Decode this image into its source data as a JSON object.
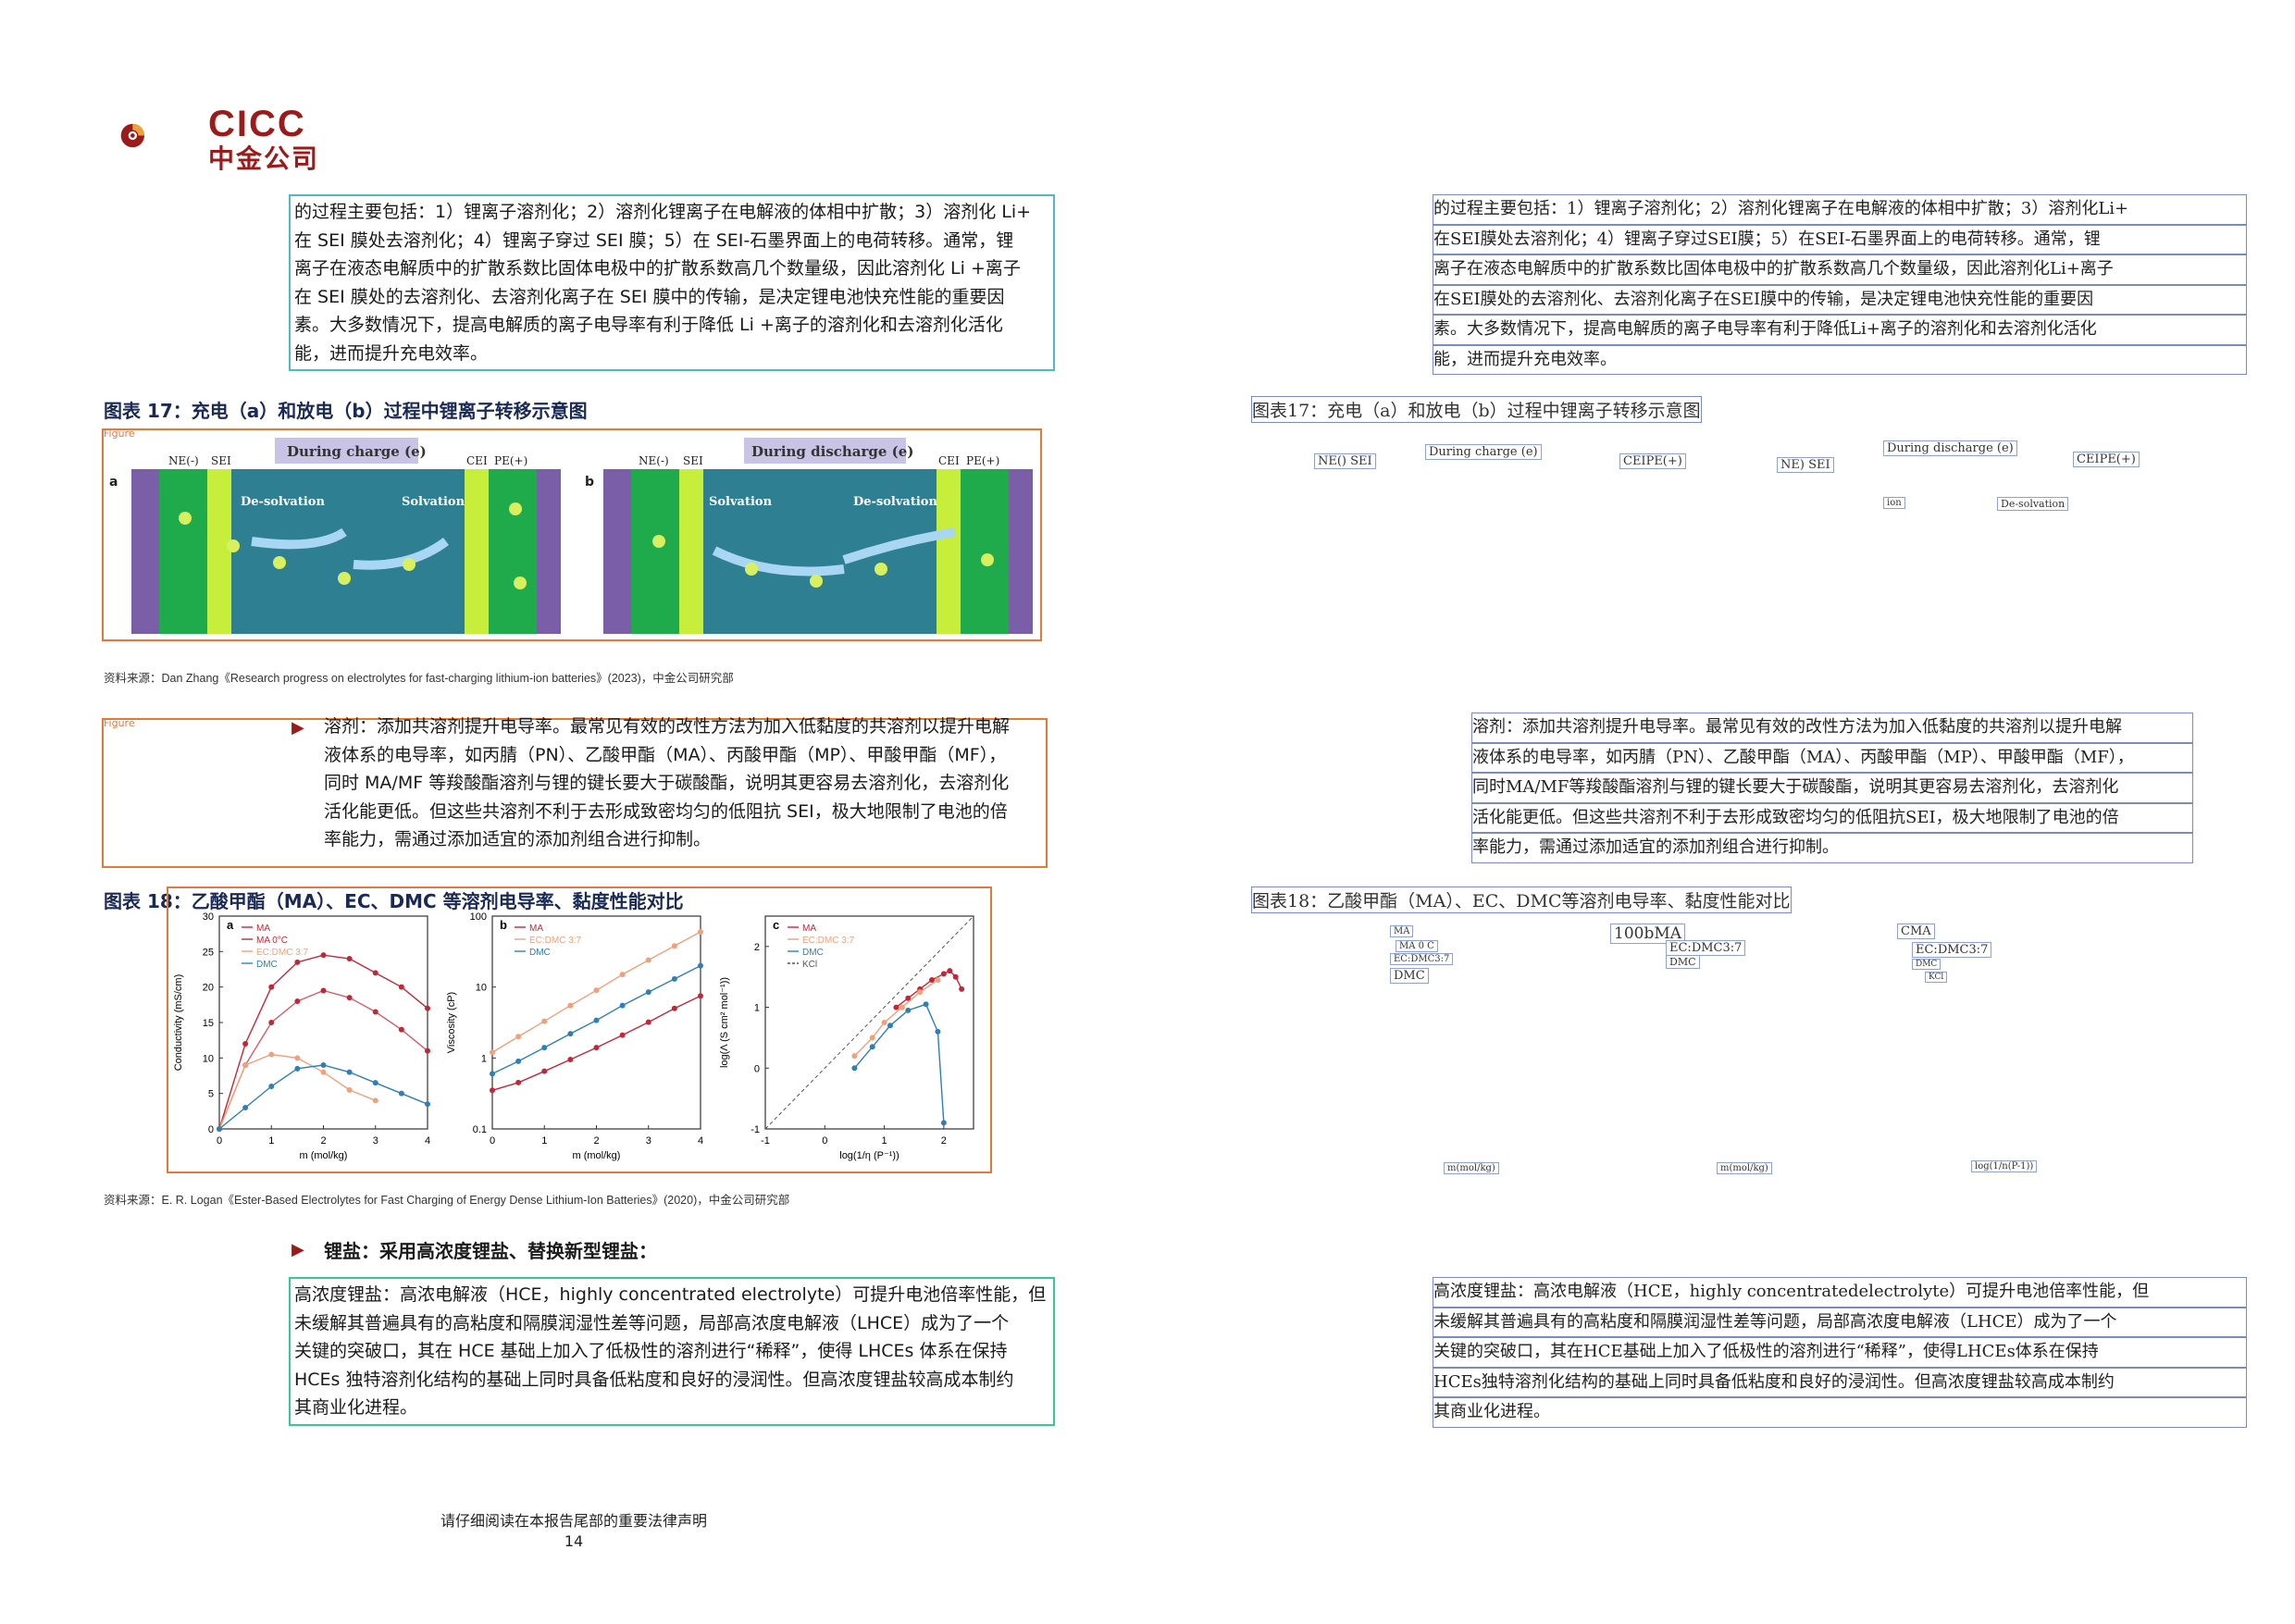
{
  "logo": {
    "en": "CICC",
    "cn": "中金公司"
  },
  "para1": {
    "lines": [
      "的过程主要包括：1）锂离子溶剂化；2）溶剂化锂离子在电解液的体相中扩散；3）溶剂化 Li+",
      "在 SEI 膜处去溶剂化；4）锂离子穿过 SEI 膜；5）在 SEI-石墨界面上的电荷转移。通常，锂",
      "离子在液态电解质中的扩散系数比固体电极中的扩散系数高几个数量级，因此溶剂化 Li +离子",
      "在 SEI 膜处的去溶剂化、去溶剂化离子在 SEI 膜中的传输，是决定锂电池快充性能的重要因",
      "素。大多数情况下，提高电解质的离子电导率有利于降低 Li +离子的溶剂化和去溶剂化活化",
      "能，进而提升充电效率。"
    ]
  },
  "fig17": {
    "title": "图表 17：充电（a）和放电（b）过程中锂离子转移示意图",
    "tag": "Figure",
    "panel_a": {
      "letter": "a",
      "header": "During charge (e)",
      "ne": "NE(-)",
      "sei": "SEI",
      "cei": "CEI",
      "pe": "PE(+)",
      "left_label": "De-solvation",
      "right_label": "Solvation"
    },
    "panel_b": {
      "letter": "b",
      "header": "During discharge (e)",
      "ne": "NE(-)",
      "sei": "SEI",
      "cei": "CEI",
      "pe": "PE(+)",
      "left_label": "Solvation",
      "right_label": "De-solvation"
    },
    "source": "资料来源：Dan Zhang《Research progress on electrolytes for fast-charging lithium-ion batteries》(2023)，中金公司研究部"
  },
  "para2": {
    "lines": [
      "溶剂：添加共溶剂提升电导率。最常见有效的改性方法为加入低黏度的共溶剂以提升电解",
      "液体系的电导率，如丙腈（PN）、乙酸甲酯（MA）、丙酸甲酯（MP）、甲酸甲酯（MF），",
      "同时 MA/MF 等羧酸酯溶剂与锂的键长要大于碳酸酯，说明其更容易去溶剂化，去溶剂化",
      "活化能更低。但这些共溶剂不利于去形成致密均匀的低阻抗 SEI，极大地限制了电池的倍",
      "率能力，需通过添加适宜的添加剂组合进行抑制。"
    ]
  },
  "fig18": {
    "title": "图表 18：乙酸甲酯（MA）、EC、DMC 等溶剂电导率、黏度性能对比",
    "source": "资料来源：E. R. Logan《Ester-Based Electrolytes for Fast Charging of Energy Dense Lithium-Ion Batteries》(2020)，中金公司研究部",
    "panel_a": {
      "letter": "a",
      "ylabel": "Conductivity (mS/cm)",
      "xlabel": "m (mol/kg)",
      "yticks": [
        "0",
        "5",
        "10",
        "15",
        "20",
        "25",
        "30"
      ],
      "xticks": [
        "0",
        "1",
        "2",
        "3",
        "4"
      ],
      "legend": [
        "MA",
        "MA 0°C",
        "EC:DMC 3:7",
        "DMC"
      ]
    },
    "panel_b": {
      "letter": "b",
      "ylabel": "Viscosity (cP)",
      "xlabel": "m (mol/kg)",
      "yticks": [
        "0.1",
        "1",
        "10",
        "100"
      ],
      "xticks": [
        "0",
        "1",
        "2",
        "3",
        "4"
      ],
      "legend": [
        "MA",
        "EC:DMC 3:7",
        "DMC"
      ]
    },
    "panel_c": {
      "letter": "c",
      "ylabel": "log(Λ (S cm² mol⁻¹))",
      "xlabel": "log(1/η (P⁻¹))",
      "yticks": [
        "-1",
        "0",
        "1",
        "2"
      ],
      "xticks": [
        "-1",
        "0",
        "1",
        "2"
      ],
      "legend": [
        "MA",
        "EC:DMC 3:7",
        "DMC",
        "KCl"
      ]
    }
  },
  "section_salt": {
    "heading": "锂盐：采用高浓度锂盐、替换新型锂盐："
  },
  "para3": {
    "lines": [
      "高浓度锂盐：高浓电解液（HCE，highly concentrated electrolyte）可提升电池倍率性能，但",
      "未缓解其普遍具有的高粘度和隔膜润湿性差等问题，局部高浓度电解液（LHCE）成为了一个",
      "关键的突破口，其在 HCE 基础上加入了低极性的溶剂进行“稀释”，使得 LHCEs 体系在保持",
      "HCEs 独特溶剂化结构的基础上同时具备低粘度和良好的浸润性。但高浓度锂盐较高成本制约",
      "其商业化进程。"
    ]
  },
  "footer": {
    "notice": "请仔细阅读在本报告尾部的重要法律声明",
    "page": "14"
  },
  "right_page": {
    "para1_lines": [
      "的过程主要包括：1）锂离子溶剂化；2）溶剂化锂离子在电解液的体相中扩散；3）溶剂化Li+",
      "在SEI膜处去溶剂化；4）锂离子穿过SEI膜；5）在SEI-石墨界面上的电荷转移。通常，锂",
      "离子在液态电解质中的扩散系数比固体电极中的扩散系数高几个数量级，因此溶剂化Li+离子",
      "在SEI膜处的去溶剂化、去溶剂化离子在SEI膜中的传输，是决定锂电池快充性能的重要因",
      "素。大多数情况下，提高电解质的离子电导率有利于降低Li+离子的溶剂化和去溶剂化活化",
      "能，进而提升充电效率。"
    ],
    "fig17_title": "图表17：充电（a）和放电（b）过程中锂离子转移示意图",
    "fig17_labels": [
      "NE() SEI",
      "During charge (e)",
      "CEIPE(+)",
      "NE) SEI",
      "During discharge (e)",
      "CEIPE(+)",
      "ion",
      "De-solvation"
    ],
    "para2_lines": [
      "溶剂：添加共溶剂提升电导率。最常见有效的改性方法为加入低黏度的共溶剂以提升电解",
      "液体系的电导率，如丙腈（PN）、乙酸甲酯（MA）、丙酸甲酯（MP）、甲酸甲酯（MF），",
      "同时MA/MF等羧酸酯溶剂与锂的键长要大于碳酸酯，说明其更容易去溶剂化，去溶剂化",
      "活化能更低。但这些共溶剂不利于去形成致密均匀的低阻抗SEI，极大地限制了电池的倍",
      "率能力，需通过添加适宜的添加剂组合进行抑制。"
    ],
    "fig18_title": "图表18：乙酸甲酯（MA）、EC、DMC等溶剂电导率、黏度性能对比",
    "fig18_labels": [
      "MA",
      "MA 0 C",
      "EC:DMC3:7",
      "DMC",
      "100bMA",
      "EC:DMC3:7",
      "DMC",
      "CMA",
      "EC:DMC3:7",
      "DMC",
      "KCl"
    ],
    "fig18_axis": [
      "m(mol/kg)",
      "m(mol/kg)",
      "log(1/n(P-1))"
    ],
    "para3_lines": [
      "高浓度锂盐：高浓电解液（HCE，highly concentratedelectrolyte）可提升电池倍率性能，但",
      "未缓解其普遍具有的高粘度和隔膜润湿性差等问题，局部高浓度电解液（LHCE）成为了一个",
      "关键的突破口，其在HCE基础上加入了低极性的溶剂进行“稀释”，使得LHCEs体系在保持",
      "HCEs独特溶剂化结构的基础上同时具备低粘度和良好的浸润性。但高浓度锂盐较高成本制约",
      "其商业化进程。"
    ]
  },
  "chart_data": [
    {
      "type": "line",
      "title": "",
      "xlabel": "m (mol/kg)",
      "ylabel": "Conductivity (mS/cm)",
      "xlim": [
        0,
        4
      ],
      "ylim": [
        0,
        30
      ],
      "series": [
        {
          "name": "MA",
          "x": [
            0,
            0.5,
            1,
            1.5,
            2,
            2.5,
            3,
            3.5,
            4
          ],
          "y": [
            0,
            12,
            20,
            23.5,
            24.5,
            24,
            22,
            20,
            17
          ]
        },
        {
          "name": "MA 0°C",
          "x": [
            0,
            0.5,
            1,
            1.5,
            2,
            2.5,
            3,
            3.5,
            4
          ],
          "y": [
            0,
            9,
            15,
            18,
            19.5,
            18.5,
            16.5,
            14,
            11
          ]
        },
        {
          "name": "EC:DMC 3:7",
          "x": [
            0,
            0.5,
            1,
            1.5,
            2,
            2.5,
            3
          ],
          "y": [
            0,
            9,
            10.5,
            10,
            8,
            5.5,
            4
          ]
        },
        {
          "name": "DMC",
          "x": [
            0,
            0.5,
            1,
            1.5,
            2,
            2.5,
            3,
            3.5,
            4
          ],
          "y": [
            0,
            3,
            6,
            8.5,
            9,
            8,
            6.5,
            5,
            3.5
          ]
        }
      ]
    },
    {
      "type": "line",
      "title": "",
      "xlabel": "m (mol/kg)",
      "ylabel": "Viscosity (cP)",
      "xlim": [
        0,
        4
      ],
      "ylim": [
        0.1,
        100
      ],
      "yscale": "log",
      "series": [
        {
          "name": "MA",
          "x": [
            0,
            0.5,
            1,
            1.5,
            2,
            2.5,
            3,
            3.5,
            4
          ],
          "y": [
            0.35,
            0.45,
            0.65,
            0.95,
            1.4,
            2.1,
            3.2,
            5,
            7.5
          ]
        },
        {
          "name": "EC:DMC 3:7",
          "x": [
            0,
            0.5,
            1,
            1.5,
            2,
            2.5,
            3,
            3.5,
            4
          ],
          "y": [
            1.2,
            2,
            3.3,
            5.5,
            9,
            15,
            24,
            38,
            60
          ]
        },
        {
          "name": "DMC",
          "x": [
            0,
            0.5,
            1,
            1.5,
            2,
            2.5,
            3,
            3.5,
            4
          ],
          "y": [
            0.6,
            0.9,
            1.4,
            2.2,
            3.4,
            5.5,
            8.5,
            13,
            20
          ]
        }
      ]
    },
    {
      "type": "scatter",
      "title": "",
      "xlabel": "log(1/η (P⁻¹))",
      "ylabel": "log(Λ (S cm² mol⁻¹))",
      "xlim": [
        -1,
        2.5
      ],
      "ylim": [
        -1,
        2.5
      ],
      "series": [
        {
          "name": "MA",
          "x": [
            1.2,
            1.4,
            1.6,
            1.8,
            2.0,
            2.1,
            2.2,
            2.3
          ],
          "y": [
            1.0,
            1.15,
            1.3,
            1.45,
            1.55,
            1.6,
            1.5,
            1.3
          ]
        },
        {
          "name": "EC:DMC 3:7",
          "x": [
            0.5,
            0.8,
            1.0,
            1.3,
            1.6,
            1.9
          ],
          "y": [
            0.2,
            0.5,
            0.75,
            1.0,
            1.25,
            1.45
          ]
        },
        {
          "name": "DMC",
          "x": [
            0.5,
            0.8,
            1.1,
            1.4,
            1.7,
            1.9,
            2.0
          ],
          "y": [
            0.0,
            0.35,
            0.7,
            0.95,
            1.05,
            0.6,
            -0.9
          ]
        },
        {
          "name": "KCl",
          "x": [
            -1,
            2.5
          ],
          "y": [
            -1,
            2.5
          ]
        }
      ]
    }
  ]
}
